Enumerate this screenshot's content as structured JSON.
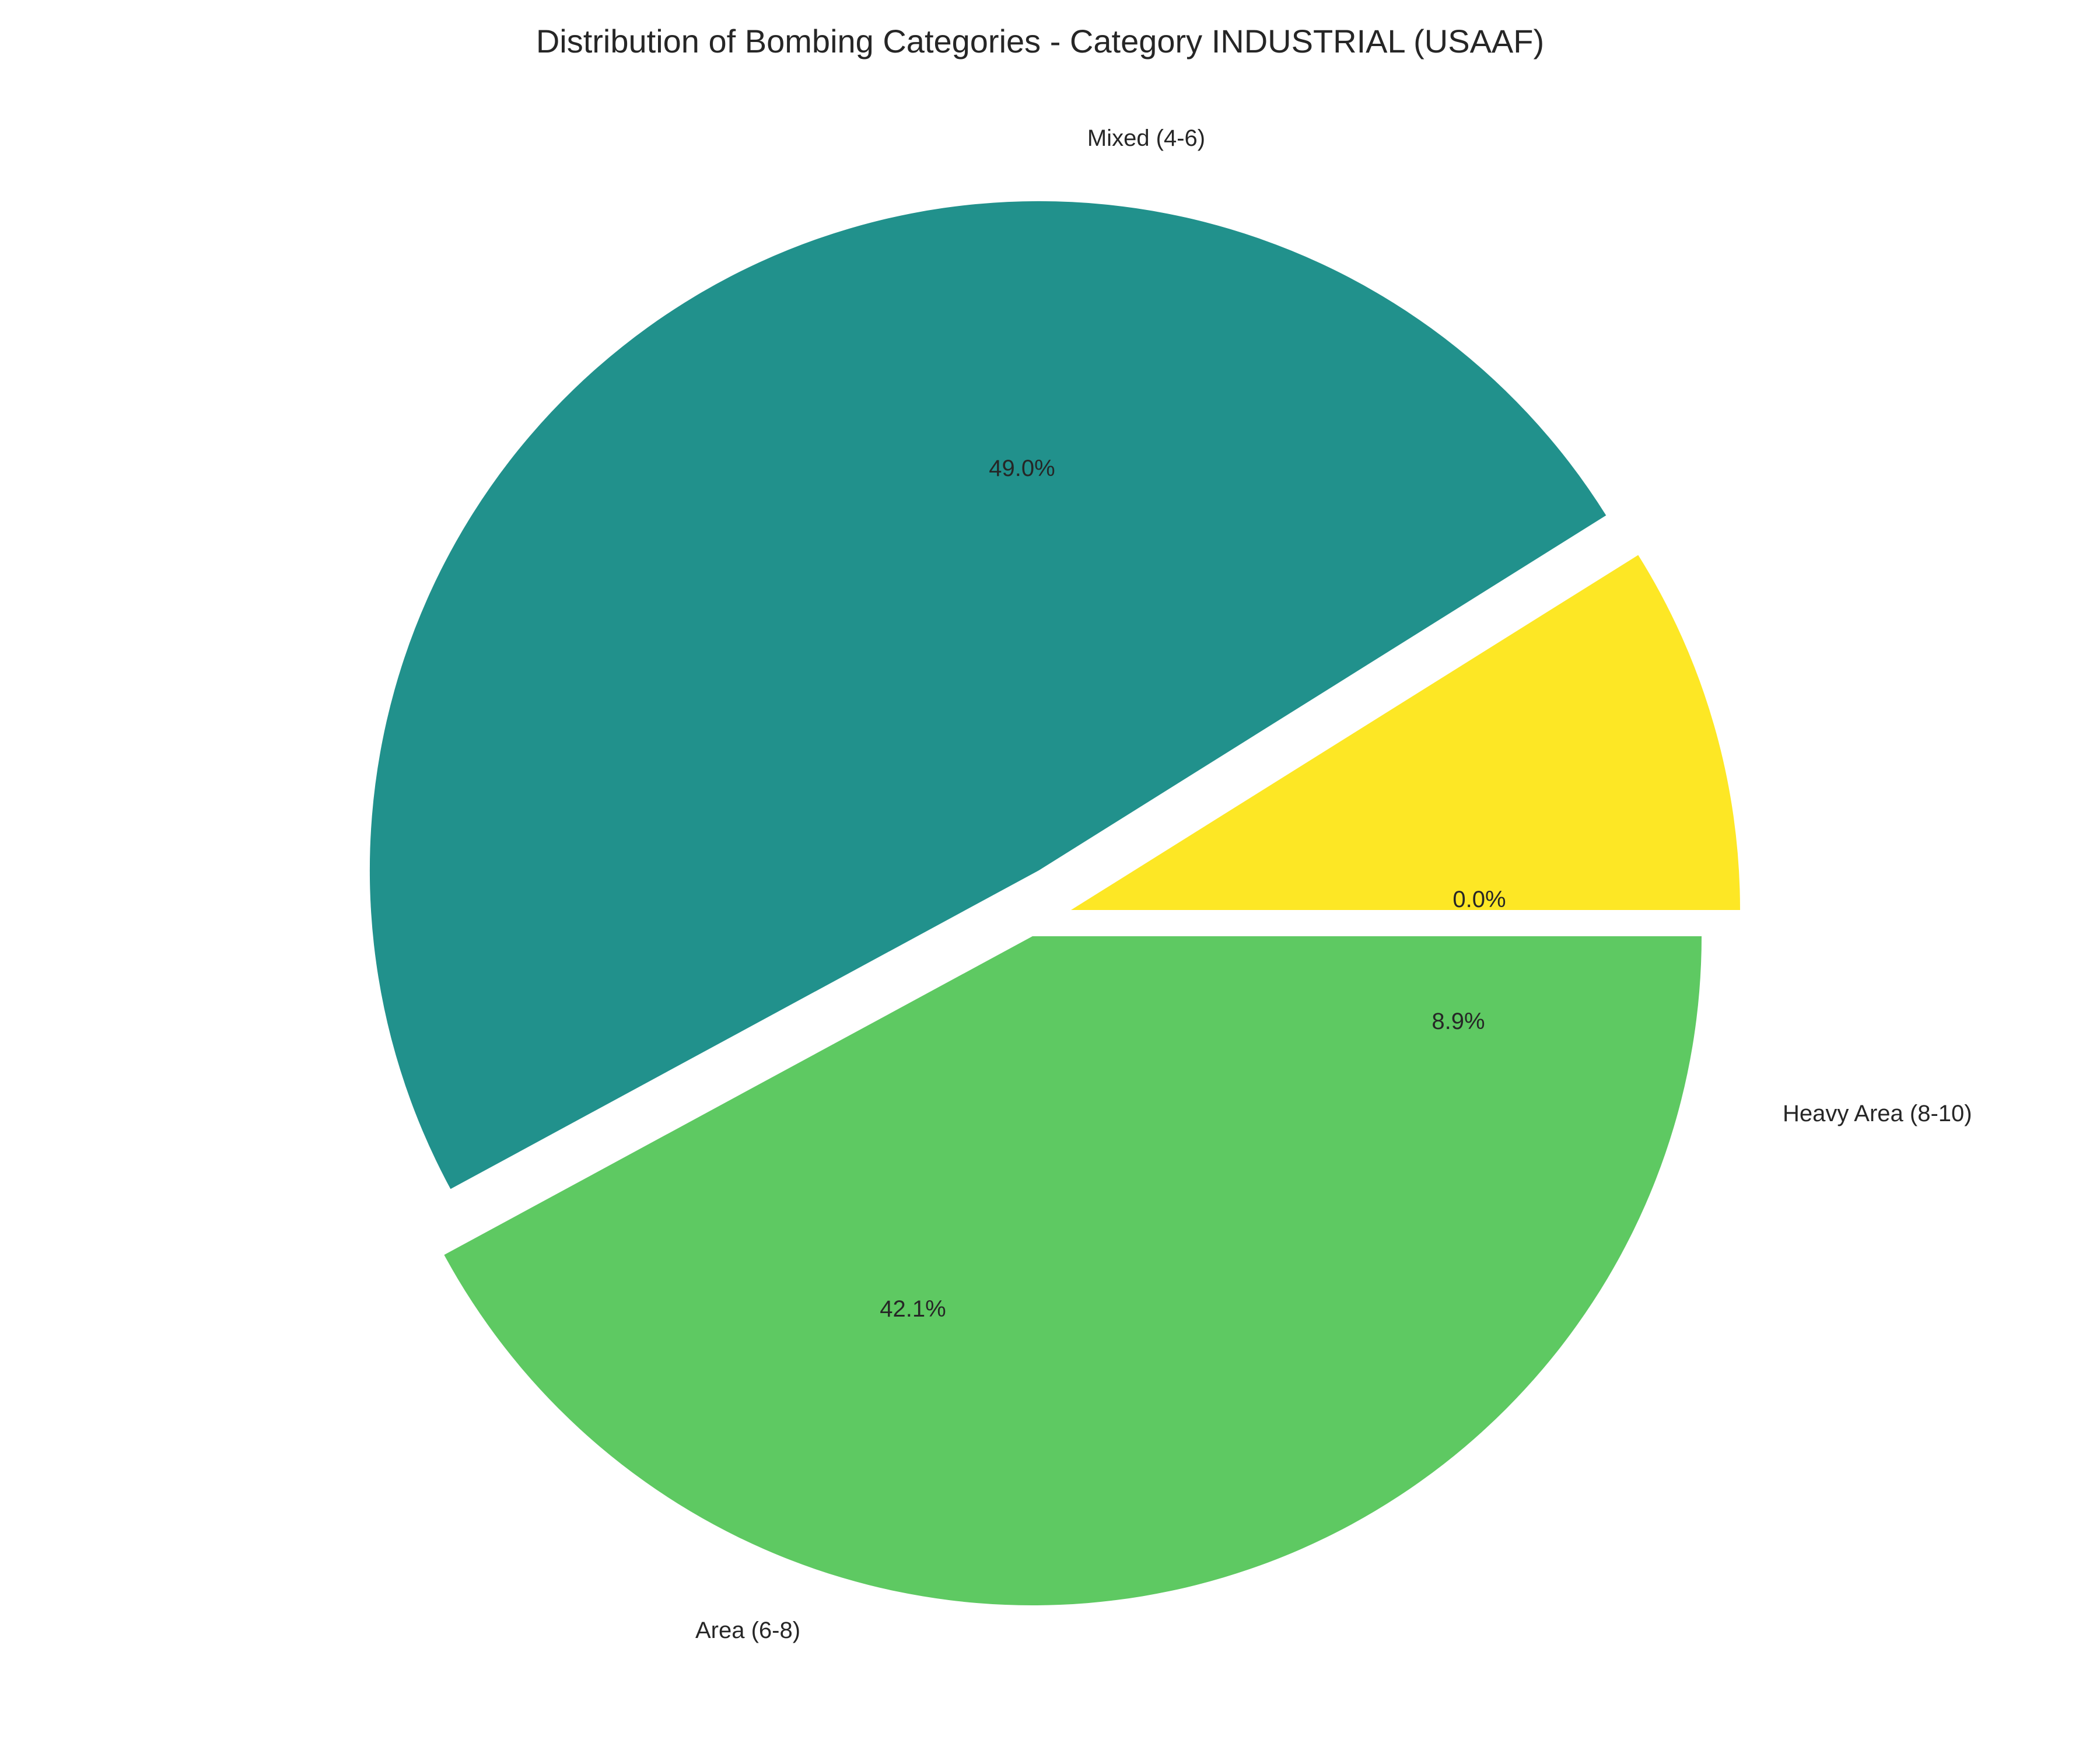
{
  "chart_data": {
    "type": "pie",
    "title": "Distribution of Bombing Categories - Category INDUSTRIAL (USAAF)",
    "categories": [
      "Heavy Area (8-10)",
      "Mixed (4-6)",
      "Area (6-8)"
    ],
    "values": [
      8.9,
      49.0,
      42.1
    ],
    "labels": {
      "heavy": "Heavy Area (8-10)",
      "mixed": "Mixed (4-6)",
      "area": "Area (6-8)"
    },
    "autopct": {
      "heavy": "8.9%",
      "mixed": "49.0%",
      "area": "42.1%",
      "empty_slice": "0.0%"
    },
    "colors": {
      "heavy": "#fde725",
      "mixed": "#21918c",
      "area": "#5ec962"
    },
    "start_angle_deg": 0,
    "direction": "counterclockwise",
    "exploded": true
  }
}
